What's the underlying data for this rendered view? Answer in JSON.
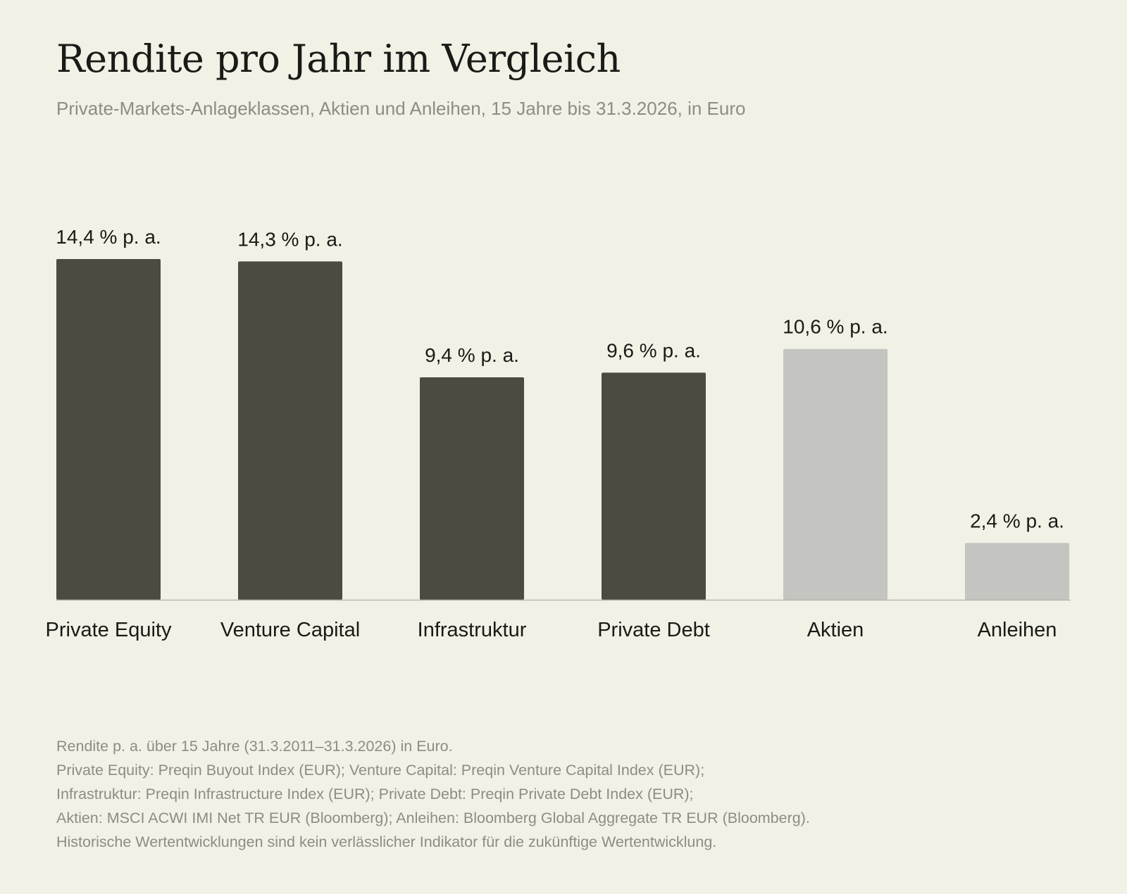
{
  "title": "Rendite pro Jahr im Vergleich",
  "subtitle": "Private-Markets-Anlageklassen, Aktien und Anleihen, 15 Jahre bis 31.3.2026, in Euro",
  "colors": {
    "private_markets": "#4b4b41",
    "public_markets": "#c4c4c1",
    "background": "#f2f1e6",
    "baseline": "#b7b6ae"
  },
  "chart_data": {
    "type": "bar",
    "categories": [
      "Private Equity",
      "Venture Capital",
      "Infrastruktur",
      "Private Debt",
      "Aktien",
      "Anleihen"
    ],
    "values": [
      14.4,
      14.3,
      9.4,
      9.6,
      10.6,
      2.4
    ],
    "data_labels": [
      "14,4 % p. a.",
      "14,3 % p. a.",
      "9,4 % p. a.",
      "9,6 % p. a.",
      "10,6 % p. a.",
      "2,4 % p. a."
    ],
    "bar_groups": [
      "private_markets",
      "private_markets",
      "private_markets",
      "private_markets",
      "public_markets",
      "public_markets"
    ],
    "ylim": [
      0,
      14.4
    ],
    "grid": false,
    "xlabel": "",
    "ylabel": ""
  },
  "notes": [
    "Rendite p. a. über 15 Jahre (31.3.2011–31.3.2026) in Euro.",
    "Private Equity: Preqin Buyout Index (EUR); Venture Capital: Preqin Venture Capital Index (EUR);",
    "Infrastruktur: Preqin Infrastructure Index (EUR); Private Debt: Preqin Private Debt Index (EUR);",
    "Aktien: MSCI ACWI IMI Net TR EUR (Bloomberg); Anleihen: Bloomberg Global Aggregate TR EUR (Bloomberg).",
    "Historische Wertentwicklungen sind kein verlässlicher Indikator für die zukünftige Wertentwicklung."
  ]
}
